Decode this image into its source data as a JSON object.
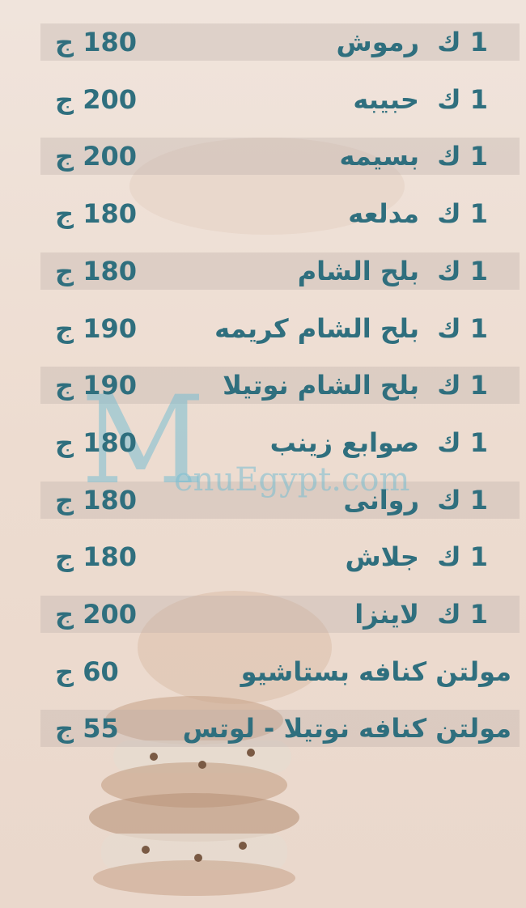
{
  "items": [
    {
      "name": "1 ك  رموش",
      "price": "180 ج"
    },
    {
      "name": "1 ك  حبيبه",
      "price": "200 ج"
    },
    {
      "name": "1 ك  بسيمه",
      "price": "200 ج"
    },
    {
      "name": "1 ك  مدلعه",
      "price": "180 ج"
    },
    {
      "name": "1 ك  بلح الشام",
      "price": "180 ج"
    },
    {
      "name": "1 ك  بلح الشام كريمه",
      "price": "190 ج"
    },
    {
      "name": "1 ك  بلح الشام نوتيلا",
      "price": "190 ج"
    },
    {
      "name": "1 ك  صوابع زينب",
      "price": "180 ج"
    },
    {
      "name": "1 ك  روانى",
      "price": "180 ج"
    },
    {
      "name": "1 ك  جلاش",
      "price": "180 ج"
    },
    {
      "name": "1 ك  لاينزا",
      "price": "200 ج"
    },
    {
      "name": "مولتن كنافه بستاشيو",
      "price": "60 ج"
    },
    {
      "name": "مولتن كنافه نوتيلا - لوتس",
      "price": "55 ج"
    }
  ],
  "watermark": {
    "logo": "M",
    "text": "enuEgypt.com"
  }
}
